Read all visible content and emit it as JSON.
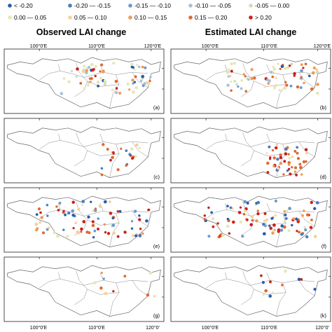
{
  "legend": [
    {
      "label": "< -0.20",
      "color": "#2a5db0"
    },
    {
      "label": "-0.20 — -0.15",
      "color": "#4a7cc2"
    },
    {
      "label": "-0.15 — -0.10",
      "color": "#6f99cc"
    },
    {
      "label": "-0.10 — -0.05",
      "color": "#a7c0d8"
    },
    {
      "label": "-0.05 — 0.00",
      "color": "#cfdcb8"
    },
    {
      "label": "0.00 — 0.05",
      "color": "#e6e6b8"
    },
    {
      "label": "0.05 — 0.10",
      "color": "#f3cfa0"
    },
    {
      "label": "0.10 — 0.15",
      "color": "#ee9a55"
    },
    {
      "label": "0.15 — 0.20",
      "color": "#e06a30"
    },
    {
      "label": "> 0.20",
      "color": "#c9221c"
    }
  ],
  "columns": [
    {
      "title": "Observed LAI change",
      "kind": "observed"
    },
    {
      "title": "Estimated LAI change",
      "kind": "estimated"
    }
  ],
  "axis_labels": {
    "top": [
      "100°0'E",
      "110°0'E",
      "120°0'E"
    ],
    "bottom": [
      "100°0'E",
      "110°0'E",
      "120°0'"
    ]
  },
  "panels": [
    {
      "label": "(a)",
      "row": 0,
      "col": 0,
      "region": "middle-lower",
      "density": 70,
      "mix": "neutral"
    },
    {
      "label": "(b)",
      "row": 0,
      "col": 1,
      "region": "middle-lower",
      "density": 70,
      "mix": "neutral"
    },
    {
      "label": "(c)",
      "row": 1,
      "col": 0,
      "region": "south-east",
      "density": 22,
      "mix": "positive"
    },
    {
      "label": "(d)",
      "row": 1,
      "col": 1,
      "region": "south-east",
      "density": 50,
      "mix": "positive"
    },
    {
      "label": "(e)",
      "row": 2,
      "col": 0,
      "region": "wide",
      "density": 85,
      "mix": "mixed"
    },
    {
      "label": "(f)",
      "row": 2,
      "col": 1,
      "region": "wide",
      "density": 95,
      "mix": "mixed"
    },
    {
      "label": "(g)",
      "row": 3,
      "col": 0,
      "region": "north-east",
      "density": 10,
      "mix": "mixed"
    },
    {
      "label": "(k)",
      "row": 3,
      "col": 1,
      "region": "north-east",
      "density": 12,
      "mix": "mixed"
    }
  ]
}
